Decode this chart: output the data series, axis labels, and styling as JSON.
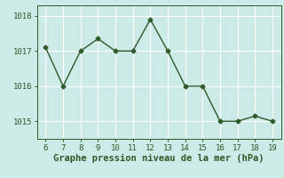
{
  "x": [
    6,
    7,
    8,
    9,
    10,
    11,
    12,
    13,
    14,
    15,
    16,
    17,
    18,
    19
  ],
  "y": [
    1017.1,
    1016.0,
    1017.0,
    1017.35,
    1017.0,
    1017.0,
    1017.9,
    1017.0,
    1016.0,
    1016.0,
    1015.0,
    1015.0,
    1015.15,
    1015.0
  ],
  "line_color": "#2d5a27",
  "marker": "D",
  "marker_size": 2.5,
  "linewidth": 1.0,
  "xlim": [
    5.5,
    19.5
  ],
  "ylim": [
    1014.5,
    1018.3
  ],
  "yticks": [
    1015,
    1016,
    1017,
    1018
  ],
  "xticks": [
    6,
    7,
    8,
    9,
    10,
    11,
    12,
    13,
    14,
    15,
    16,
    17,
    18,
    19
  ],
  "xlabel": "Graphe pression niveau de la mer (hPa)",
  "bg_color": "#cceae7",
  "grid_color": "#ffffff",
  "tick_color": "#2d5a27",
  "label_color": "#2d5a27",
  "tick_fontsize": 6.5,
  "xlabel_fontsize": 7.5
}
